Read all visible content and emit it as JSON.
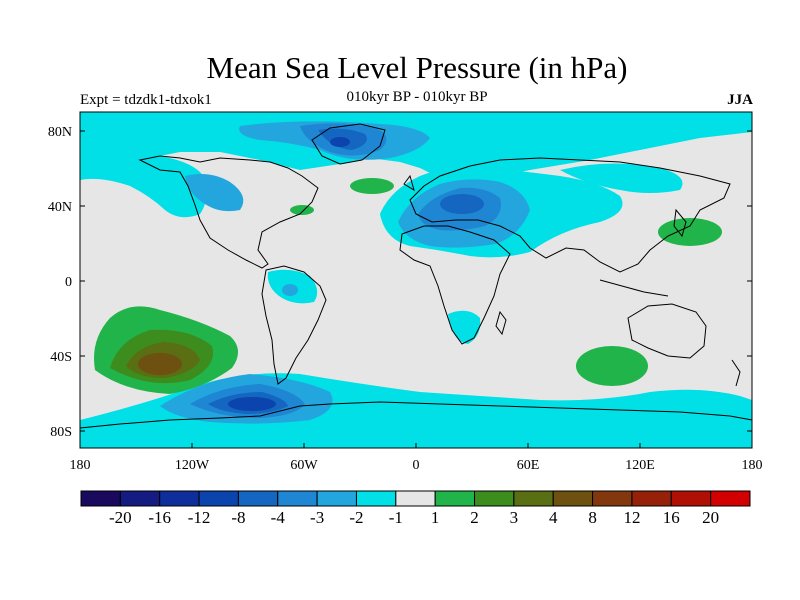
{
  "header": {
    "title": "Mean Sea Level Pressure (in hPa)",
    "experiment": "Expt = tdzdk1-tdxok1",
    "period": "010kyr BP - 010kyr BP",
    "season": "JJA"
  },
  "axes": {
    "x_ticks": [
      "180",
      "120W",
      "60W",
      "0",
      "60E",
      "120E",
      "180"
    ],
    "y_ticks": [
      "80N",
      "40N",
      "0",
      "40S",
      "80S"
    ]
  },
  "colorbar": {
    "colors": [
      "#1a0a5e",
      "#141c82",
      "#0f2e9c",
      "#0a44ac",
      "#1466c0",
      "#1e86d2",
      "#23a6de",
      "#00e0e6",
      "#e6e6e6",
      "#20b44a",
      "#3c8c1e",
      "#5a6e14",
      "#6e5010",
      "#82380c",
      "#962008",
      "#b01004",
      "#d20000"
    ],
    "labels": [
      "-20",
      "-16",
      "-12",
      "-8",
      "-4",
      "-3",
      "-2",
      "-1",
      "1",
      "2",
      "3",
      "4",
      "8",
      "12",
      "16",
      "20"
    ]
  },
  "map": {
    "region": "Global",
    "field": "Mean sea level pressure anomaly",
    "units": "hPa"
  },
  "colors": {
    "neutral": "#e6e6e6",
    "cyan": "#00e0e6",
    "light_blue": "#23a6de",
    "mid_blue": "#1e86d2",
    "blue": "#1466c0",
    "deep_blue": "#0a44ac",
    "green": "#20b44a",
    "dark_green": "#3c8c1e",
    "olive": "#5a6e14",
    "brown": "#6e5010"
  }
}
